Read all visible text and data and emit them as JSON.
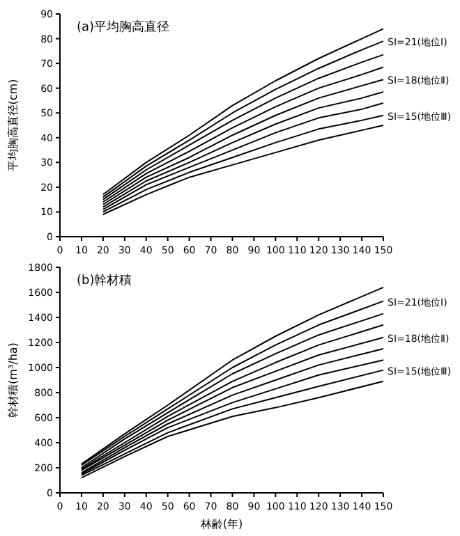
{
  "chart_data": [
    {
      "type": "line",
      "title": "(a)平均胸高直径",
      "ylabel": "平均胸高直径(cm)",
      "x": [
        20,
        40,
        60,
        80,
        100,
        120,
        140,
        150
      ],
      "xlim": [
        0,
        150
      ],
      "xticks": [
        0,
        10,
        20,
        30,
        40,
        50,
        60,
        70,
        80,
        90,
        100,
        110,
        120,
        130,
        140,
        150
      ],
      "ylim": [
        0,
        90
      ],
      "yticks": [
        0,
        10,
        20,
        30,
        40,
        50,
        60,
        70,
        80,
        90
      ],
      "series": [
        {
          "color": "#000000",
          "values": [
            17,
            30,
            41,
            53,
            63,
            72,
            80,
            84
          ]
        },
        {
          "name": "SI=21(地位Ⅰ)",
          "color": "#000000",
          "values": [
            16,
            28.5,
            39,
            50,
            59.5,
            68,
            75.5,
            79
          ]
        },
        {
          "color": "#000000",
          "values": [
            15,
            27,
            37,
            47,
            56,
            64,
            70.5,
            73.5
          ]
        },
        {
          "color": "#000000",
          "values": [
            14,
            25.5,
            34.5,
            44,
            52.5,
            60,
            65.5,
            68.5
          ]
        },
        {
          "name": "SI=18(地位Ⅱ)",
          "color": "#000000",
          "values": [
            13,
            24,
            32,
            41,
            49,
            56,
            61,
            63.5
          ]
        },
        {
          "color": "#000000",
          "values": [
            12,
            22.5,
            30,
            38,
            45.5,
            52,
            56,
            58.5
          ]
        },
        {
          "color": "#000000",
          "values": [
            11,
            21,
            28,
            35,
            42,
            48,
            51.5,
            54
          ]
        },
        {
          "name": "SI=15(地位Ⅲ)",
          "color": "#000000",
          "values": [
            10,
            19,
            26,
            32,
            38,
            43.5,
            47,
            49
          ]
        },
        {
          "color": "#000000",
          "values": [
            9,
            17,
            24,
            29,
            34,
            39,
            43,
            45
          ]
        }
      ]
    },
    {
      "type": "line",
      "title": "(b)幹材積",
      "ylabel": "幹材積(m³/ha)",
      "xlabel": "林齢(年)",
      "x": [
        10,
        30,
        50,
        80,
        100,
        120,
        150
      ],
      "xlim": [
        0,
        150
      ],
      "xticks": [
        0,
        10,
        20,
        30,
        40,
        50,
        60,
        70,
        80,
        90,
        100,
        110,
        120,
        130,
        140,
        150
      ],
      "ylim": [
        0,
        1800
      ],
      "yticks": [
        0,
        200,
        400,
        600,
        800,
        1000,
        1200,
        1400,
        1600,
        1800
      ],
      "series": [
        {
          "color": "#000000",
          "values": [
            230,
            470,
            700,
            1060,
            1250,
            1420,
            1640
          ]
        },
        {
          "name": "SI=21(地位Ⅰ)",
          "color": "#000000",
          "values": [
            220,
            450,
            670,
            1000,
            1180,
            1340,
            1530
          ]
        },
        {
          "color": "#000000",
          "values": [
            200,
            430,
            640,
            950,
            1110,
            1260,
            1430
          ]
        },
        {
          "color": "#000000",
          "values": [
            190,
            400,
            610,
            890,
            1040,
            1180,
            1340
          ]
        },
        {
          "name": "SI=18(地位Ⅱ)",
          "color": "#000000",
          "values": [
            180,
            380,
            580,
            840,
            970,
            1100,
            1240
          ]
        },
        {
          "color": "#000000",
          "values": [
            160,
            360,
            550,
            780,
            900,
            1020,
            1150
          ]
        },
        {
          "color": "#000000",
          "values": [
            150,
            340,
            520,
            720,
            830,
            940,
            1060
          ]
        },
        {
          "name": "SI=15(地位Ⅲ)",
          "color": "#000000",
          "values": [
            140,
            310,
            480,
            670,
            760,
            850,
            980
          ]
        },
        {
          "color": "#000000",
          "values": [
            120,
            290,
            450,
            610,
            680,
            760,
            890
          ]
        }
      ]
    }
  ]
}
